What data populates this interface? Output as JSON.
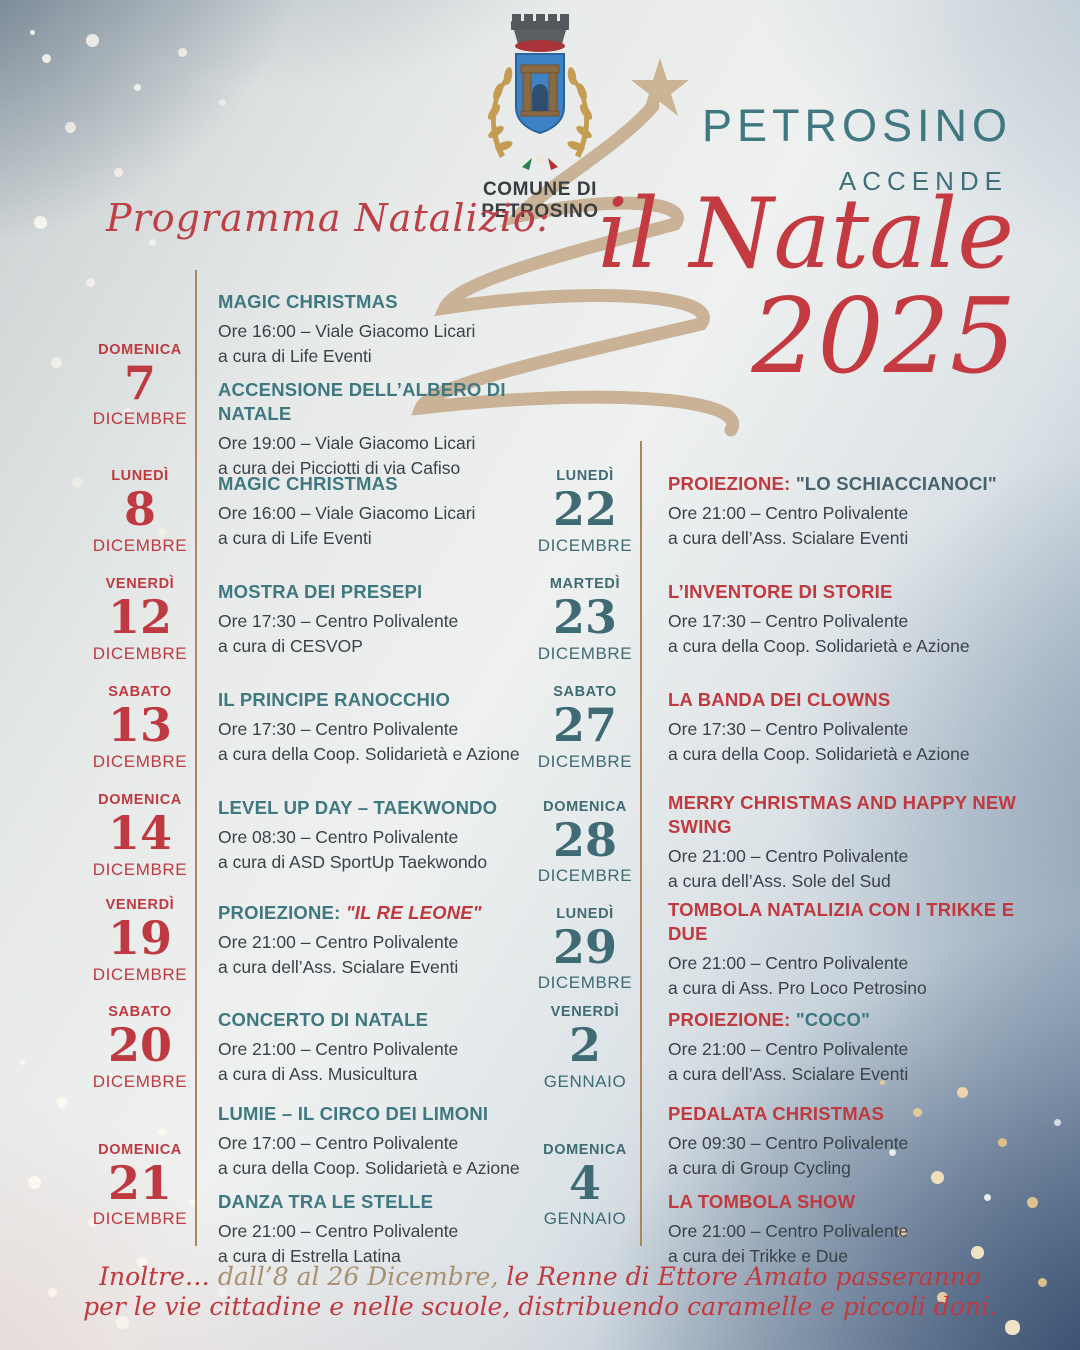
{
  "colors": {
    "red": "#C0393F",
    "red_date": "#BE3A40",
    "teal": "#3F7880",
    "teal_dark": "#3E6B74",
    "slate": "#47626C",
    "tan": "#A9906E",
    "body": "#3A4149",
    "divider": "#A8895F",
    "swirl": "#C9B295"
  },
  "logo": {
    "name_line1": "COMUNE DI",
    "name_line2": "PETROSINO"
  },
  "header": {
    "city": "PETROSINO",
    "accende": "ACCENDE",
    "script_line": "il Natale",
    "year": "2025",
    "program_label": "Programma Natalizio:"
  },
  "columns": [
    {
      "side": "left",
      "accent": "red_date",
      "blocks": [
        {
          "weekday": "DOMENICA",
          "day": "7",
          "month": "DICEMBRE",
          "events": [
            {
              "title": [
                {
                  "text": "MAGIC CHRISTMAS",
                  "color": "teal"
                }
              ],
              "lines": [
                "Ore 16:00 – Viale Giacomo Licari",
                "a cura di Life Eventi"
              ]
            },
            {
              "title": [
                {
                  "text": "ACCENSIONE DELL’ALBERO DI NATALE",
                  "color": "teal"
                }
              ],
              "lines": [
                "Ore 19:00 – Viale Giacomo Licari",
                "a cura dei Picciotti di via Cafiso"
              ]
            }
          ]
        },
        {
          "weekday": "LUNEDÌ",
          "day": "8",
          "month": "DICEMBRE",
          "events": [
            {
              "title": [
                {
                  "text": "MAGIC CHRISTMAS",
                  "color": "teal"
                }
              ],
              "lines": [
                "Ore 16:00 – Viale Giacomo Licari",
                "a cura di Life Eventi"
              ]
            }
          ]
        },
        {
          "weekday": "VENERDÌ",
          "day": "12",
          "month": "DICEMBRE",
          "events": [
            {
              "title": [
                {
                  "text": "MOSTRA DEI PRESEPI",
                  "color": "teal"
                }
              ],
              "lines": [
                "Ore 17:30 – Centro Polivalente",
                "a cura di CESVOP"
              ]
            }
          ]
        },
        {
          "weekday": "SABATO",
          "day": "13",
          "month": "DICEMBRE",
          "events": [
            {
              "title": [
                {
                  "text": "IL PRINCIPE RANOCCHIO",
                  "color": "teal"
                }
              ],
              "lines": [
                "Ore 17:30 – Centro Polivalente",
                "a cura della Coop. Solidarietà e Azione"
              ]
            }
          ]
        },
        {
          "weekday": "DOMENICA",
          "day": "14",
          "month": "DICEMBRE",
          "events": [
            {
              "title": [
                {
                  "text": "LEVEL UP DAY – TAEKWONDO",
                  "color": "teal"
                }
              ],
              "lines": [
                "Ore 08:30 – Centro Polivalente",
                "a cura di ASD SportUp Taekwondo"
              ]
            }
          ]
        },
        {
          "weekday": "VENERDÌ",
          "day": "19",
          "month": "DICEMBRE",
          "events": [
            {
              "title": [
                {
                  "text": "PROIEZIONE: ",
                  "color": "teal"
                },
                {
                  "text": "\"IL RE LEONE\"",
                  "color": "red",
                  "italic": true
                }
              ],
              "lines": [
                "Ore 21:00 – Centro Polivalente",
                "a cura dell’Ass. Scialare Eventi"
              ]
            }
          ]
        },
        {
          "weekday": "SABATO",
          "day": "20",
          "month": "DICEMBRE",
          "events": [
            {
              "title": [
                {
                  "text": "CONCERTO DI NATALE",
                  "color": "teal"
                }
              ],
              "lines": [
                "Ore 21:00 – Centro Polivalente",
                "a cura di Ass. Musicultura"
              ]
            }
          ]
        },
        {
          "weekday": "DOMENICA",
          "day": "21",
          "month": "DICEMBRE",
          "events": [
            {
              "title": [
                {
                  "text": "LUMIE – IL CIRCO DEI LIMONI",
                  "color": "teal"
                }
              ],
              "lines": [
                "Ore 17:00 – Centro Polivalente",
                "a cura della Coop. Solidarietà e Azione"
              ]
            },
            {
              "title": [
                {
                  "text": "DANZA TRA LE STELLE",
                  "color": "teal"
                }
              ],
              "lines": [
                "Ore 21:00 – Centro Polivalente",
                "a cura di Estrella Latina"
              ]
            }
          ]
        }
      ]
    },
    {
      "side": "right",
      "accent": "teal_dark",
      "blocks": [
        {
          "weekday": "LUNEDÌ",
          "day": "22",
          "month": "DICEMBRE",
          "events": [
            {
              "title": [
                {
                  "text": "PROIEZIONE: ",
                  "color": "red"
                },
                {
                  "text": "\"LO SCHIACCIANOCI\"",
                  "color": "slate"
                }
              ],
              "lines": [
                "Ore 21:00 – Centro Polivalente",
                "a cura dell’Ass. Scialare Eventi"
              ]
            }
          ]
        },
        {
          "weekday": "MARTEDÌ",
          "day": "23",
          "month": "DICEMBRE",
          "events": [
            {
              "title": [
                {
                  "text": "L’INVENTORE DI STORIE",
                  "color": "red"
                }
              ],
              "lines": [
                "Ore 17:30 – Centro Polivalente",
                "a cura della Coop. Solidarietà e Azione"
              ]
            }
          ]
        },
        {
          "weekday": "SABATO",
          "day": "27",
          "month": "DICEMBRE",
          "events": [
            {
              "title": [
                {
                  "text": "LA BANDA DEI CLOWNS",
                  "color": "red"
                }
              ],
              "lines": [
                "Ore 17:30 – Centro Polivalente",
                "a cura della Coop. Solidarietà e Azione"
              ]
            }
          ]
        },
        {
          "weekday": "DOMENICA",
          "day": "28",
          "month": "DICEMBRE",
          "events": [
            {
              "title": [
                {
                  "text": "MERRY CHRISTMAS AND HAPPY NEW SWING",
                  "color": "red"
                }
              ],
              "lines": [
                "Ore 21:00 – Centro Polivalente",
                "a cura dell’Ass. Sole del Sud"
              ]
            }
          ]
        },
        {
          "weekday": "LUNEDÌ",
          "day": "29",
          "month": "DICEMBRE",
          "events": [
            {
              "title": [
                {
                  "text": "TOMBOLA NATALIZIA CON I TRIKKE E DUE",
                  "color": "red"
                }
              ],
              "lines": [
                "Ore 21:00 – Centro Polivalente",
                "a cura di Ass. Pro Loco Petrosino"
              ]
            }
          ]
        },
        {
          "weekday": "VENERDÌ",
          "day": "2",
          "month": "GENNAIO",
          "events": [
            {
              "title": [
                {
                  "text": "PROIEZIONE: ",
                  "color": "red"
                },
                {
                  "text": "\"COCO\"",
                  "color": "teal"
                }
              ],
              "lines": [
                "Ore 21:00 – Centro Polivalente",
                "a cura dell’Ass. Scialare Eventi"
              ]
            }
          ]
        },
        {
          "weekday": "DOMENICA",
          "day": "4",
          "month": "GENNAIO",
          "events": [
            {
              "title": [
                {
                  "text": "PEDALATA CHRISTMAS",
                  "color": "red"
                }
              ],
              "lines": [
                "Ore 09:30 – Centro Polivalente",
                "a cura di Group Cycling"
              ]
            },
            {
              "title": [
                {
                  "text": "LA TOMBOLA SHOW",
                  "color": "red"
                }
              ],
              "lines": [
                "Ore 21:00 – Centro Polivalente",
                "a cura dei Trikke e Due"
              ]
            }
          ]
        }
      ]
    }
  ],
  "footer": {
    "line1_segments": [
      {
        "text": "Inoltre… ",
        "color": "red"
      },
      {
        "text": "dall’8 al 26 Dicembre, ",
        "color": "tan"
      },
      {
        "text": "le Renne di Ettore Amato passeranno",
        "color": "red"
      }
    ],
    "line2": "per le vie cittadine e nelle scuole, distribuendo caramelle e piccoli doni."
  }
}
